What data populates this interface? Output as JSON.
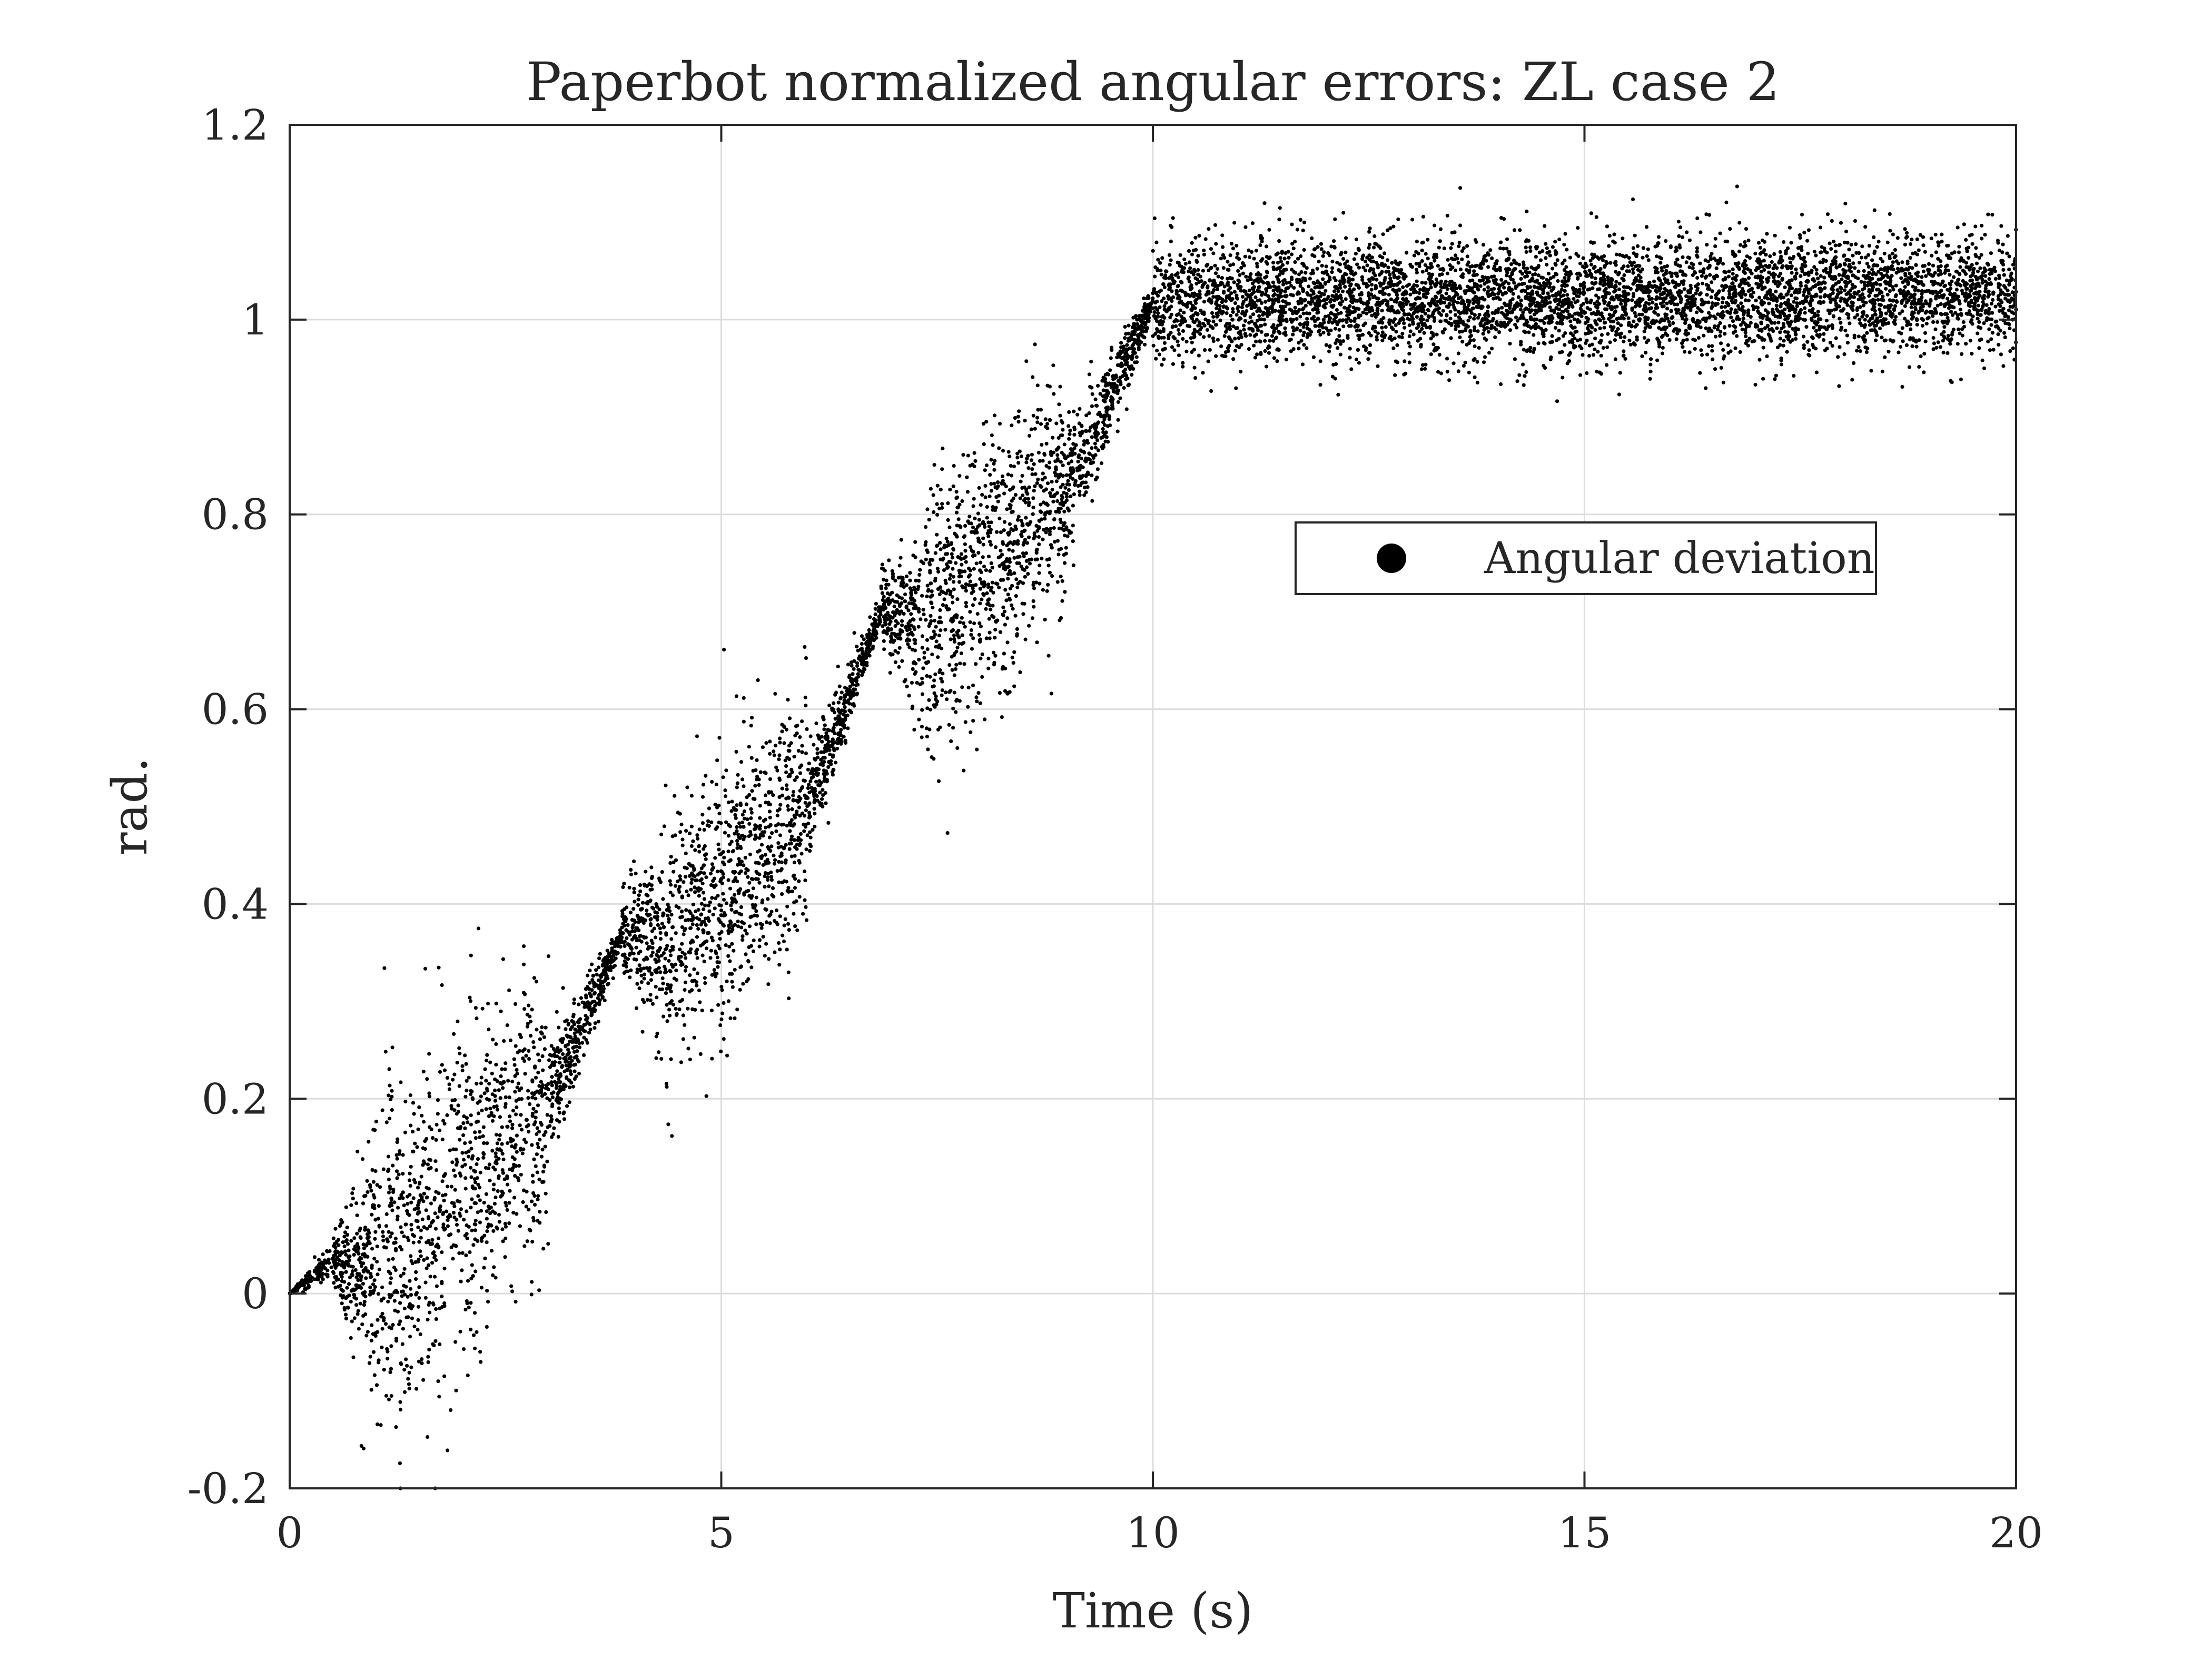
{
  "chart_data": {
    "type": "scatter",
    "title": "Paperbot normalized angular errors: ZL case 2",
    "xlabel": "Time (s)",
    "ylabel": "rad.",
    "xlim": [
      0,
      20
    ],
    "ylim": [
      -0.2,
      1.2
    ],
    "xticks": [
      0,
      5,
      10,
      15,
      20
    ],
    "xtick_labels": [
      "0",
      "5",
      "10",
      "15",
      "20"
    ],
    "yticks": [
      -0.2,
      0,
      0.2,
      0.4,
      0.6,
      0.8,
      1.0,
      1.2
    ],
    "ytick_labels": [
      "-0.2",
      "0",
      "0.2",
      "0.4",
      "0.6",
      "0.8",
      "1",
      "1.2"
    ],
    "grid": true,
    "legend": {
      "position": "upper-right-center",
      "entries": [
        "Angular deviation"
      ]
    },
    "colors": {
      "marker": "#000000",
      "grid": "#dcdcdc",
      "axes": "#262626"
    },
    "series": [
      {
        "name": "Angular deviation",
        "marker": "point",
        "segments": [
          {
            "t_start": 0.0,
            "t_end": 0.5,
            "y_start": 0.0,
            "y_end": 0.035,
            "spread_start": 0.0,
            "spread_end": 0.01,
            "count": 120
          },
          {
            "t_start": 0.5,
            "t_end": 1.0,
            "y_start": 0.035,
            "y_end": 0.03,
            "spread_start": 0.015,
            "spread_end": 0.06,
            "count": 260
          },
          {
            "t_start": 1.0,
            "t_end": 3.0,
            "y_start": 0.02,
            "y_end": 0.2,
            "spread_start": 0.09,
            "spread_end": 0.07,
            "count": 950
          },
          {
            "t_start": 3.0,
            "t_end": 3.85,
            "y_start": 0.2,
            "y_end": 0.37,
            "spread_start": 0.03,
            "spread_end": 0.005,
            "count": 400
          },
          {
            "t_start": 3.85,
            "t_end": 4.3,
            "y_start": 0.37,
            "y_end": 0.36,
            "spread_start": 0.02,
            "spread_end": 0.05,
            "count": 220
          },
          {
            "t_start": 4.3,
            "t_end": 6.0,
            "y_start": 0.35,
            "y_end": 0.5,
            "spread_start": 0.07,
            "spread_end": 0.06,
            "count": 900
          },
          {
            "t_start": 6.0,
            "t_end": 6.85,
            "y_start": 0.5,
            "y_end": 0.7,
            "spread_start": 0.03,
            "spread_end": 0.005,
            "count": 420
          },
          {
            "t_start": 6.85,
            "t_end": 7.3,
            "y_start": 0.7,
            "y_end": 0.69,
            "spread_start": 0.02,
            "spread_end": 0.04,
            "count": 220
          },
          {
            "t_start": 7.3,
            "t_end": 9.0,
            "y_start": 0.68,
            "y_end": 0.82,
            "spread_start": 0.07,
            "spread_end": 0.06,
            "count": 900
          },
          {
            "t_start": 9.0,
            "t_end": 10.0,
            "y_start": 0.82,
            "y_end": 1.02,
            "spread_start": 0.04,
            "spread_end": 0.005,
            "count": 480
          },
          {
            "t_start": 10.0,
            "t_end": 20.0,
            "y_start": 1.02,
            "y_end": 1.025,
            "spread_start": 0.03,
            "spread_end": 0.03,
            "count": 5200
          }
        ]
      }
    ]
  }
}
